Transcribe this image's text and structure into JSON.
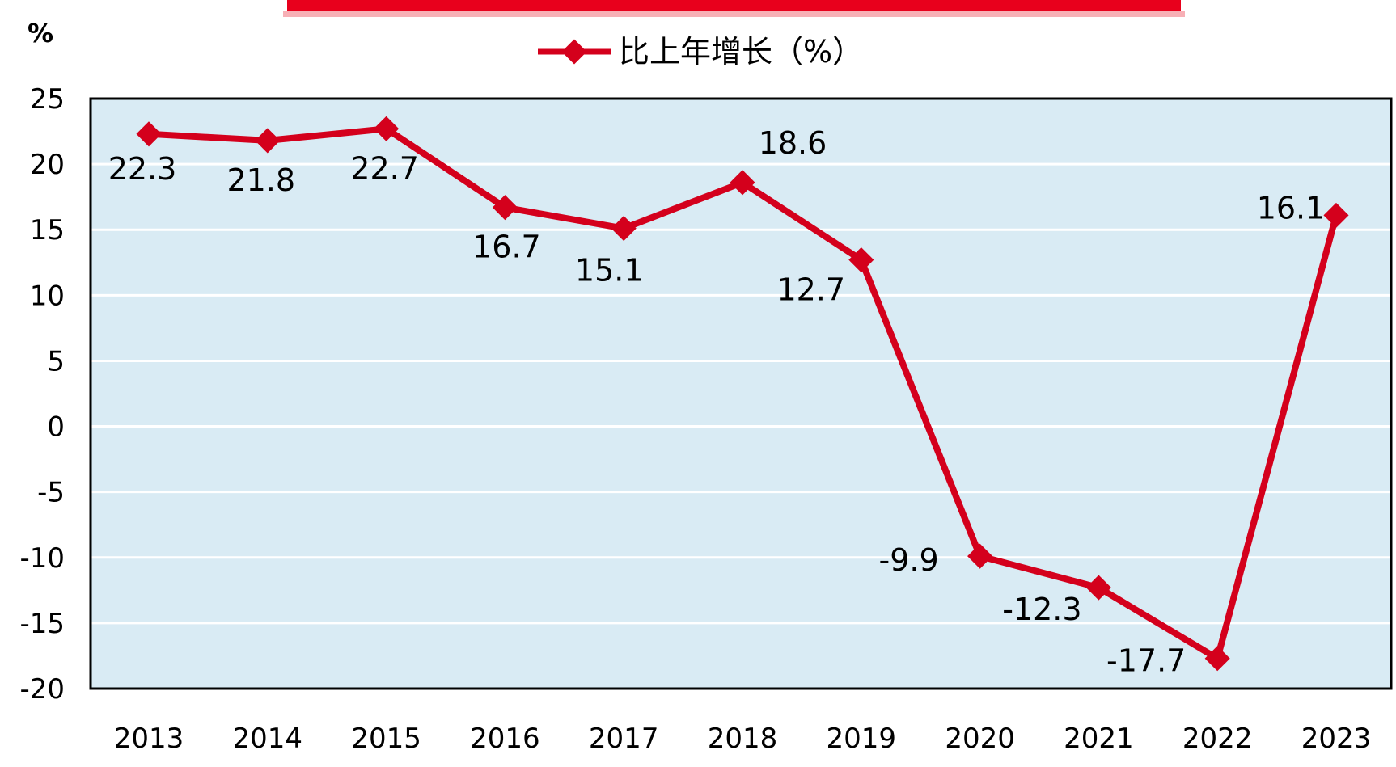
{
  "chart_data": {
    "type": "line",
    "title": "",
    "ylabel": "%",
    "xlabel": "",
    "categories": [
      "2013",
      "2014",
      "2015",
      "2016",
      "2017",
      "2018",
      "2019",
      "2020",
      "2021",
      "2022",
      "2023"
    ],
    "series": [
      {
        "name": "比上年增长（%）",
        "values": [
          22.3,
          21.8,
          22.7,
          16.7,
          15.1,
          18.6,
          12.7,
          -9.9,
          -12.3,
          -17.7,
          16.1
        ],
        "labels": [
          "22.3",
          "21.8",
          "22.7",
          "16.7",
          "15.1",
          "18.6",
          "12.7",
          "-9.9",
          "-12.3",
          "-17.7",
          "16.1"
        ],
        "color": "#d4001c"
      }
    ],
    "ylim": [
      -20,
      25
    ],
    "yticks": [
      25,
      20,
      15,
      10,
      5,
      0,
      -5,
      -10,
      -15,
      -20
    ],
    "ytick_labels": [
      "25",
      "20",
      "15",
      "10",
      "5",
      "0",
      "-5",
      "-10",
      "-15",
      "-20"
    ],
    "grid": true,
    "legend_position": "top-center",
    "colors": {
      "plot_background": "#d9ebf4",
      "gridline": "#ffffff",
      "axis": "#000000",
      "top_banner": "#e8001c"
    }
  }
}
